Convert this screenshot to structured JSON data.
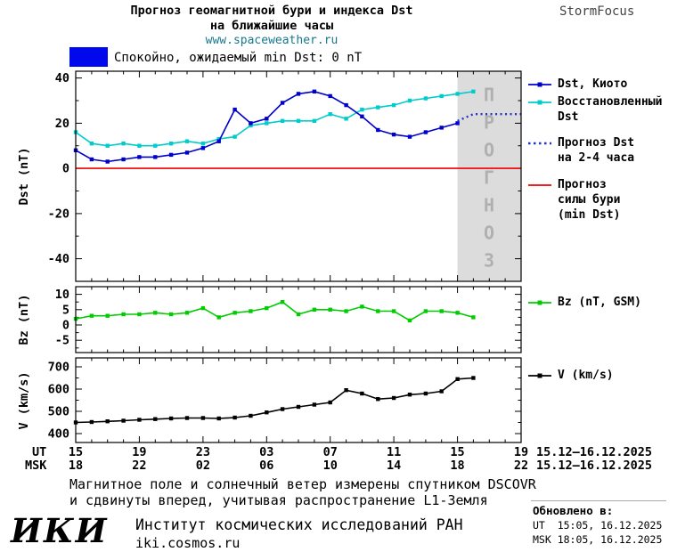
{
  "header": {
    "title_line1": "Прогноз геомагнитной бури и индекса Dst",
    "title_line2": "на ближайшие часы",
    "url": "www.spaceweather.ru",
    "brand": "StormFocus"
  },
  "status_legend": {
    "text": "Спокойно, ожидаемый min Dst: 0 nT",
    "box_color": "#0008ee"
  },
  "forecast_band_label": "ПРОГНОЗ",
  "legend_entries": [
    {
      "label": "Dst, Киото",
      "color": "#0000cc",
      "style": "line-square"
    },
    {
      "label": "Восстановленный\nDst",
      "color": "#00cccc",
      "style": "line-square"
    },
    {
      "label": "Прогноз Dst\nна 2-4 часа",
      "color": "#2233cc",
      "style": "dotted"
    },
    {
      "label": "Прогноз\nсилы бури\n(min Dst)",
      "color": "#ee0000",
      "style": "line"
    },
    {
      "label": "Bz (nT, GSM)",
      "color": "#00cc00",
      "style": "line-square"
    },
    {
      "label": "V (km/s)",
      "color": "#000000",
      "style": "line-square"
    }
  ],
  "xaxis": {
    "ut_label": "UT",
    "msk_label": "MSK",
    "ticks_hours": [
      15,
      19,
      23,
      27,
      31,
      35,
      39,
      43
    ],
    "ut_ticks": [
      "15",
      "19",
      "23",
      "03",
      "07",
      "11",
      "15",
      "19"
    ],
    "msk_ticks": [
      "18",
      "22",
      "02",
      "06",
      "10",
      "14",
      "18",
      "22"
    ],
    "ut_date_range": "15.12–16.12.2025",
    "msk_date_range": "15.12–16.12.2025"
  },
  "chart_data": [
    {
      "type": "line",
      "ylabel": "Dst (nT)",
      "xlim": [
        15,
        43
      ],
      "ylim": [
        -50,
        43
      ],
      "yticks": [
        40,
        20,
        0,
        -20,
        -40
      ],
      "yminor": [
        -30,
        -10,
        10,
        30
      ],
      "band": {
        "x0": 39,
        "x1": 43,
        "color": "#dcdcdc"
      },
      "series": [
        {
          "key": "storm-level-forecast",
          "name": "Прогноз силы бури (min Dst)",
          "color": "#ee0000",
          "lw": 1.6,
          "x": [
            15,
            43
          ],
          "y": [
            0,
            0
          ]
        },
        {
          "key": "restored-dst",
          "name": "Восстановленный Dst",
          "color": "#00cccc",
          "marker": true,
          "lw": 1.6,
          "x": [
            15,
            16,
            17,
            18,
            19,
            20,
            21,
            22,
            23,
            24,
            25,
            26,
            27,
            28,
            29,
            30,
            31,
            32,
            33,
            34,
            35,
            36,
            37,
            38,
            39,
            40
          ],
          "y": [
            16,
            11,
            10,
            11,
            10,
            10,
            11,
            12,
            11,
            13,
            14,
            19,
            20,
            21,
            21,
            21,
            24,
            22,
            26,
            27,
            28,
            30,
            31,
            32,
            33,
            34
          ]
        },
        {
          "key": "kyoto-dst",
          "name": "Dst, Киото",
          "color": "#0000cc",
          "marker": true,
          "lw": 1.6,
          "x": [
            15,
            16,
            17,
            18,
            19,
            20,
            21,
            22,
            23,
            24,
            25,
            26,
            27,
            28,
            29,
            30,
            31,
            32,
            33,
            34,
            35,
            36,
            37,
            38,
            39
          ],
          "y": [
            8,
            4,
            3,
            4,
            5,
            5,
            6,
            7,
            9,
            12,
            26,
            20,
            22,
            29,
            33,
            34,
            32,
            28,
            23,
            17,
            15,
            14,
            16,
            18,
            20
          ]
        },
        {
          "key": "dst-forecast",
          "name": "Прогноз Dst на 2-4 часа",
          "color": "#2233cc",
          "lw": 2.4,
          "dash": "2 3.5",
          "x": [
            39,
            40,
            41,
            42,
            43
          ],
          "y": [
            21,
            24,
            24,
            24,
            24
          ]
        }
      ]
    },
    {
      "type": "line",
      "ylabel": "Bz (nT)",
      "xlim": [
        15,
        43
      ],
      "ylim": [
        -9,
        12.5
      ],
      "yticks": [
        10,
        5,
        0,
        -5
      ],
      "yminor": [
        -7.5,
        -2.5,
        2.5,
        7.5
      ],
      "series": [
        {
          "key": "bz-gsm",
          "name": "Bz (nT, GSM)",
          "color": "#00cc00",
          "marker": true,
          "lw": 1.6,
          "x": [
            15,
            16,
            17,
            18,
            19,
            20,
            21,
            22,
            23,
            24,
            25,
            26,
            27,
            28,
            29,
            30,
            31,
            32,
            33,
            34,
            35,
            36,
            37,
            38,
            39,
            40
          ],
          "y": [
            2,
            3,
            3,
            3.5,
            3.5,
            4,
            3.5,
            4,
            5.5,
            2.5,
            4,
            4.5,
            5.5,
            7.5,
            3.5,
            5,
            5,
            4.5,
            6,
            4.5,
            4.5,
            1.5,
            4.5,
            4.5,
            4,
            2.5
          ]
        }
      ]
    },
    {
      "type": "line",
      "ylabel": "V (km/s)",
      "xlim": [
        15,
        43
      ],
      "ylim": [
        360,
        740
      ],
      "yticks": [
        700,
        600,
        500,
        400
      ],
      "yminor": [
        450,
        550,
        650
      ],
      "series": [
        {
          "key": "solar-wind-speed",
          "name": "V (km/s)",
          "color": "#000000",
          "marker": true,
          "lw": 1.6,
          "x": [
            15,
            16,
            17,
            18,
            19,
            20,
            21,
            22,
            23,
            24,
            25,
            26,
            27,
            28,
            29,
            30,
            31,
            32,
            33,
            34,
            35,
            36,
            37,
            38,
            39,
            40
          ],
          "y": [
            450,
            452,
            455,
            458,
            462,
            465,
            468,
            470,
            470,
            468,
            472,
            480,
            495,
            510,
            520,
            530,
            540,
            595,
            580,
            555,
            560,
            575,
            580,
            590,
            645,
            650
          ]
        }
      ]
    }
  ],
  "footer": {
    "note_line1": "Магнитное поле и солнечный ветер измерены спутником DSCOVR",
    "note_line2": "и сдвинуты вперед, учитывая распространение L1-Земля",
    "logo": "ИКИ",
    "institute": "Институт космических исследований РАН",
    "institute_url": "iki.cosmos.ru"
  },
  "updated": {
    "label": "Обновлено в:",
    "ut": "UT  15:05, 16.12.2025",
    "msk": "MSK 18:05, 16.12.2025"
  }
}
